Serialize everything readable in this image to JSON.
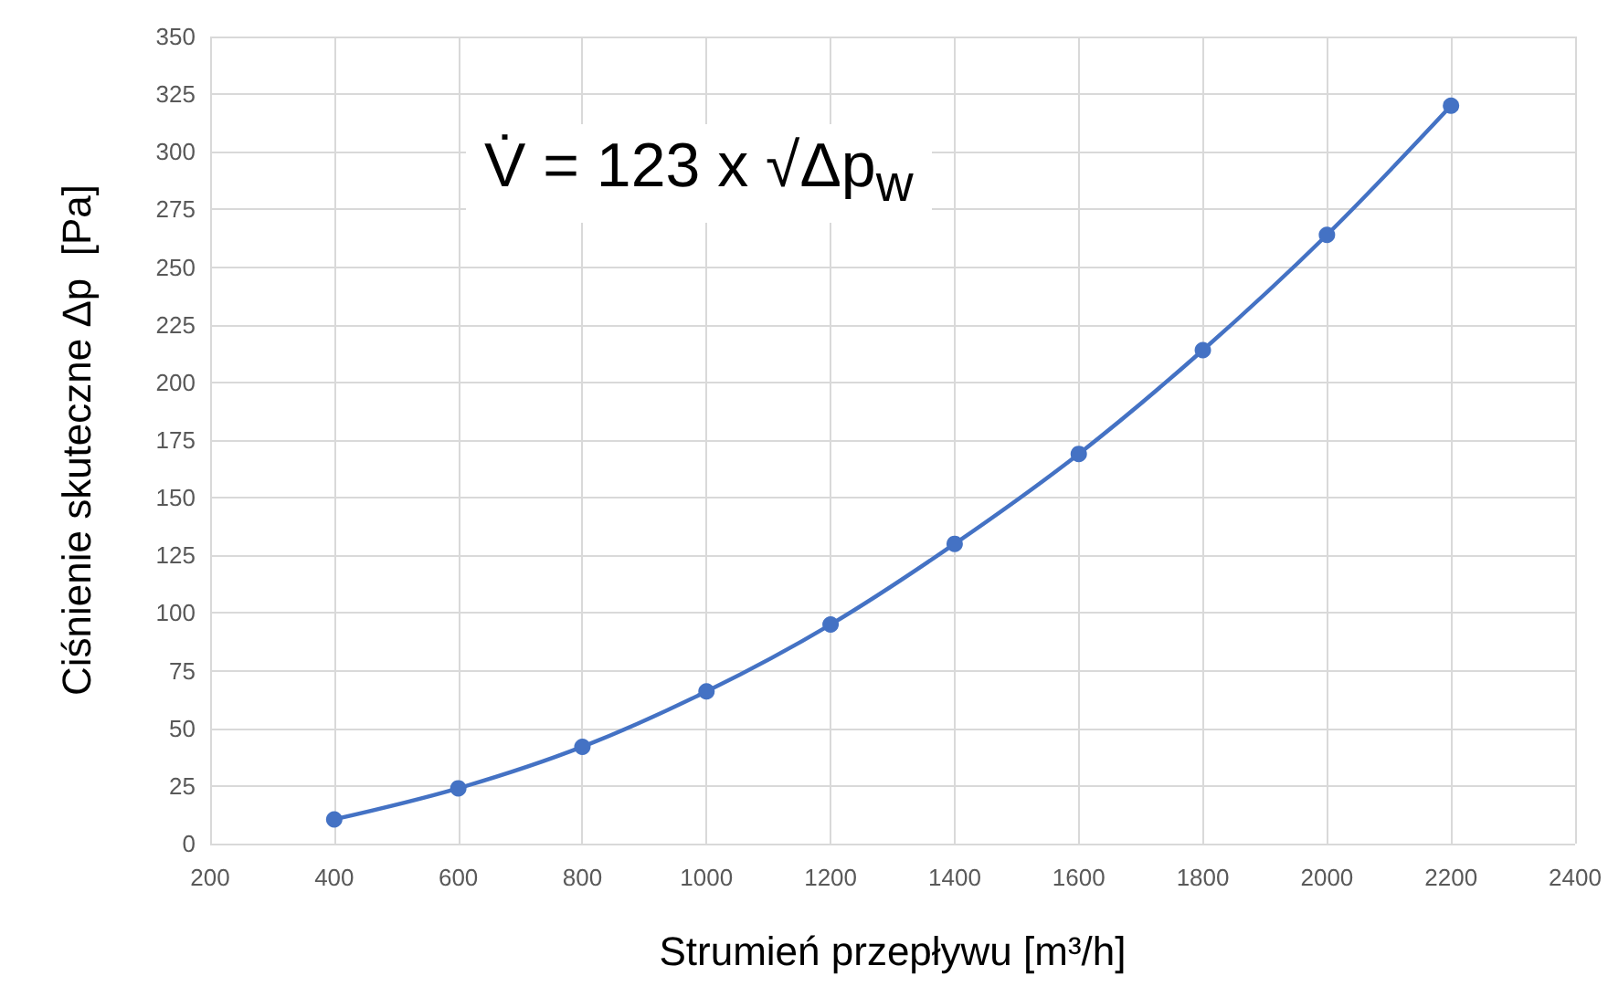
{
  "chart_data": {
    "type": "line",
    "xlabel": "Strumień przepływu [m³/h]",
    "ylabel": "Ciśnienie skuteczne Δp  [Pa]",
    "annotations": [
      "V̇ = 123 x √Δp$_{w}$"
    ],
    "x": [
      400,
      600,
      800,
      1000,
      1200,
      1400,
      1600,
      1800,
      2000,
      2200
    ],
    "series": [
      {
        "color": "#4472c4",
        "values": [
          10.5,
          24,
          42,
          66,
          95,
          130,
          169,
          214,
          264,
          320
        ]
      }
    ],
    "xlim": [
      200,
      2400
    ],
    "xticks": [
      200,
      400,
      600,
      800,
      1000,
      1200,
      1400,
      1600,
      1800,
      2000,
      2200,
      2400
    ],
    "ylim": [
      0,
      350
    ],
    "yticks": [
      0,
      25,
      50,
      75,
      100,
      125,
      150,
      175,
      200,
      225,
      250,
      275,
      300,
      325,
      350
    ],
    "grid": true,
    "marker": "circle",
    "line_style": "solid"
  }
}
